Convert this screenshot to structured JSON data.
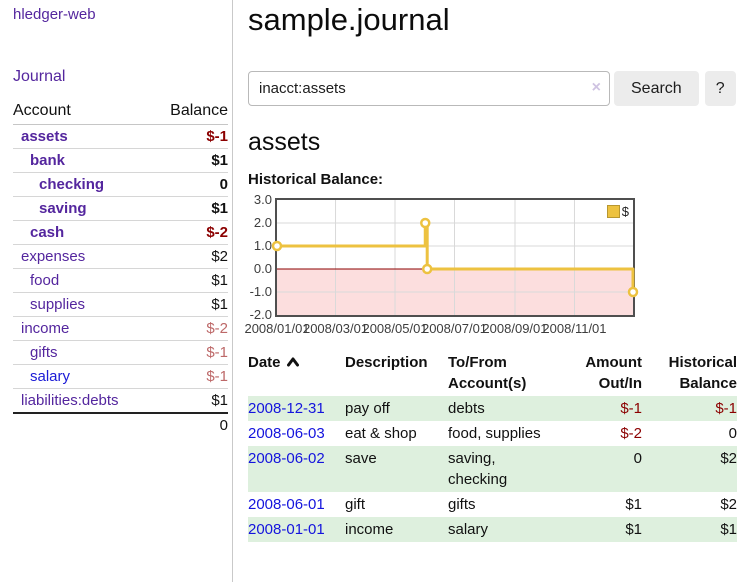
{
  "app": {
    "brand": "hledger-web",
    "nav_journal": "Journal"
  },
  "header": {
    "title": "sample.journal"
  },
  "search": {
    "query": "inacct:assets",
    "clear_icon": "×",
    "button_label": "Search",
    "help_label": "?"
  },
  "sidebar": {
    "headers": {
      "account": "Account",
      "balance": "Balance"
    },
    "accounts": [
      {
        "name": "assets",
        "depth": 0,
        "emph": true,
        "link": "visited",
        "balance": "$-1",
        "tone": "neg"
      },
      {
        "name": "bank",
        "depth": 1,
        "emph": true,
        "link": "visited",
        "balance": "$1",
        "tone": "pos"
      },
      {
        "name": "checking",
        "depth": 2,
        "emph": true,
        "link": "visited",
        "balance": "0",
        "tone": "pos"
      },
      {
        "name": "saving",
        "depth": 2,
        "emph": true,
        "link": "visited",
        "balance": "$1",
        "tone": "pos"
      },
      {
        "name": "cash",
        "depth": 1,
        "emph": true,
        "link": "visited",
        "balance": "$-2",
        "tone": "neg"
      },
      {
        "name": "expenses",
        "depth": 0,
        "emph": false,
        "link": "visited",
        "balance": "$2",
        "tone": "pos"
      },
      {
        "name": "food",
        "depth": 1,
        "emph": false,
        "link": "visited",
        "balance": "$1",
        "tone": "pos"
      },
      {
        "name": "supplies",
        "depth": 1,
        "emph": false,
        "link": "visited",
        "balance": "$1",
        "tone": "pos"
      },
      {
        "name": "income",
        "depth": 0,
        "emph": false,
        "link": "visited",
        "balance": "$-2",
        "tone": "negdim"
      },
      {
        "name": "gifts",
        "depth": 1,
        "emph": false,
        "link": "visited",
        "balance": "$-1",
        "tone": "negdim"
      },
      {
        "name": "salary",
        "depth": 1,
        "emph": false,
        "link": "unvisited",
        "balance": "$-1",
        "tone": "negdim"
      },
      {
        "name": "liabilities:debts",
        "depth": 0,
        "emph": false,
        "link": "visited",
        "balance": "$1",
        "tone": "pos"
      }
    ],
    "total": "0"
  },
  "account_page": {
    "heading": "assets",
    "chart_label": "Historical Balance:"
  },
  "chart_data": {
    "type": "line",
    "title": "Historical Balance:",
    "step": true,
    "x_range": [
      "2008-01-01",
      "2008-12-31"
    ],
    "ylim": [
      -2,
      3
    ],
    "y_ticks": [
      3.0,
      2.0,
      1.0,
      0.0,
      -1.0,
      -2.0
    ],
    "x_ticks": [
      {
        "date": "2008-01-01",
        "label": "2008/01/01"
      },
      {
        "date": "2008-03-01",
        "label": "2008/03/01"
      },
      {
        "date": "2008-05-01",
        "label": "2008/05/01"
      },
      {
        "date": "2008-07-01",
        "label": "2008/07/01"
      },
      {
        "date": "2008-09-01",
        "label": "2008/09/01"
      },
      {
        "date": "2008-11-01",
        "label": "2008/11/01"
      }
    ],
    "series": [
      {
        "name": "$",
        "color": "#edc240",
        "points": [
          {
            "date": "2008-01-01",
            "value": 1
          },
          {
            "date": "2008-06-01",
            "value": 2
          },
          {
            "date": "2008-06-03",
            "value": 0
          },
          {
            "date": "2008-12-31",
            "value": -1
          }
        ]
      }
    ],
    "legend_position": "top-right",
    "grid": true,
    "negative_fill": "#fcdede",
    "zero_line_color": "#8b0000",
    "gridline_color": "#d9d9d9"
  },
  "register": {
    "headers": {
      "date": "Date",
      "description": "Description",
      "account": "To/From Account(s)",
      "amount": "Amount Out/In",
      "balance": "Historical Balance"
    },
    "sort": {
      "column": "date",
      "direction": "ascending"
    },
    "rows": [
      {
        "date": "2008-12-31",
        "description": "pay off",
        "accounts": "debts",
        "amount": "$-1",
        "amount_tone": "neg",
        "balance": "$-1",
        "balance_tone": "neg"
      },
      {
        "date": "2008-06-03",
        "description": "eat & shop",
        "accounts": "food, supplies",
        "amount": "$-2",
        "amount_tone": "neg",
        "balance": "0",
        "balance_tone": "pos"
      },
      {
        "date": "2008-06-02",
        "description": "save",
        "accounts": "saving, checking",
        "amount": "0",
        "amount_tone": "pos",
        "balance": "$2",
        "balance_tone": "pos"
      },
      {
        "date": "2008-06-01",
        "description": "gift",
        "accounts": "gifts",
        "amount": "$1",
        "amount_tone": "pos",
        "balance": "$2",
        "balance_tone": "pos"
      },
      {
        "date": "2008-01-01",
        "description": "income",
        "accounts": "salary",
        "amount": "$1",
        "amount_tone": "pos",
        "balance": "$1",
        "balance_tone": "pos"
      }
    ]
  },
  "colors": {
    "link_purple": "#54269e",
    "link_blue": "#1414dd",
    "negative": "#8b0000",
    "negative_dim": "#bd6868",
    "row_stripe_green": "#def0de",
    "series_gold": "#edc240",
    "chart_border": "#4f4f4f"
  }
}
